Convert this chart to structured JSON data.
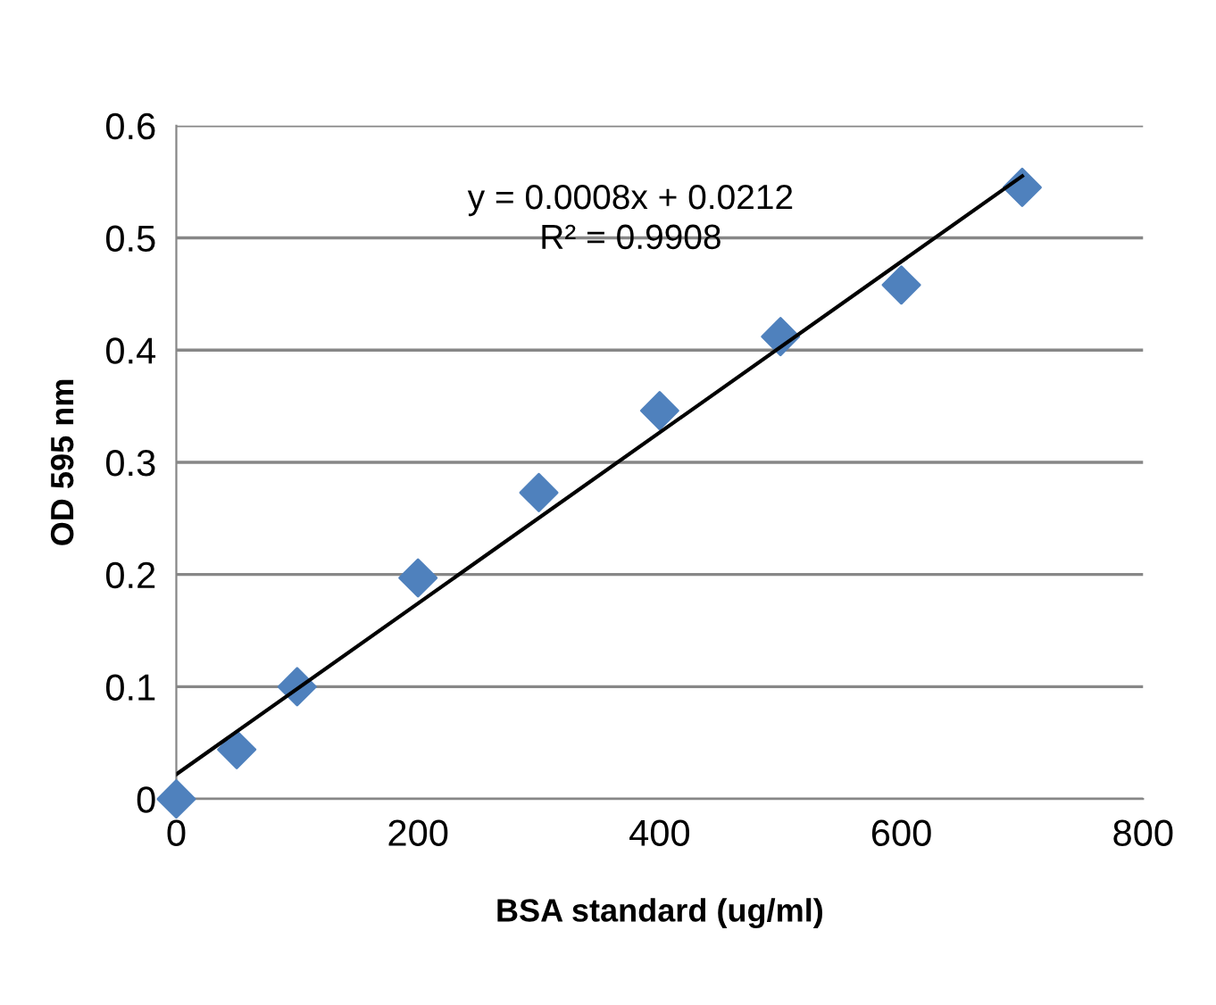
{
  "chart_data": {
    "type": "scatter",
    "xlabel": "BSA standard (ug/ml)",
    "ylabel": "OD 595 nm",
    "x": [
      0,
      50,
      100,
      200,
      300,
      400,
      500,
      600,
      700
    ],
    "series": [
      {
        "color": "#4f81bd",
        "marker": "diamond",
        "values": [
          0,
          0.044,
          0.1,
          0.197,
          0.273,
          0.346,
          0.412,
          0.458,
          0.545
        ]
      },
      {
        "type": "line",
        "color": "#000000",
        "x": [
          0,
          700
        ],
        "values": [
          0.022,
          0.555
        ]
      }
    ],
    "annotations": [
      "y = 0.0008x + 0.0212\nR² = 0.9908"
    ],
    "xlim": [
      0,
      800
    ],
    "xticks": [
      0,
      200,
      400,
      600,
      800
    ],
    "ylim": [
      0,
      0.6
    ],
    "yticks": [
      0,
      0.1,
      0.2,
      0.3,
      0.4,
      0.5,
      0.6
    ],
    "grid": "y",
    "legend": false
  }
}
